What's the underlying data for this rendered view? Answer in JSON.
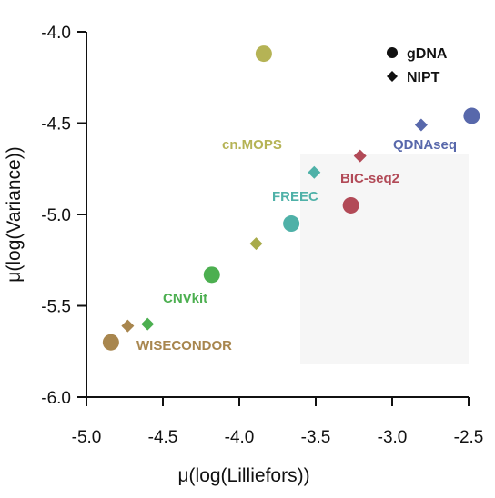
{
  "chart_data": {
    "type": "scatter",
    "xlabel": "μ(log(Lilliefors))",
    "ylabel": "μ(log(Variance))",
    "xlim": [
      -5.0,
      -2.5
    ],
    "ylim": [
      -6.0,
      -4.0
    ],
    "xticks": [
      "-5.0",
      "-4.5",
      "-4.0",
      "-3.5",
      "-3.0",
      "-2.5"
    ],
    "yticks": [
      "-4.0",
      "-4.5",
      "-5.0",
      "-5.5",
      "-6.0"
    ],
    "legend": {
      "position": "top-right",
      "entries": [
        {
          "label": "gDNA",
          "marker": "circle"
        },
        {
          "label": "NIPT",
          "marker": "diamond"
        }
      ]
    },
    "tools": [
      {
        "name": "cn.MOPS",
        "color": "#b5b355",
        "gDNA": {
          "x": -3.84,
          "y": -4.12
        }
      },
      {
        "name": "QDNAseq",
        "color": "#5868ab",
        "gDNA": {
          "x": -2.48,
          "y": -4.46
        },
        "NIPT": {
          "x": -2.81,
          "y": -4.51
        }
      },
      {
        "name": "BIC-seq2",
        "color": "#b24a57",
        "gDNA": {
          "x": -3.27,
          "y": -4.95
        },
        "NIPT": {
          "x": -3.21,
          "y": -4.68
        }
      },
      {
        "name": "FREEC",
        "color": "#4fb1a8",
        "gDNA": {
          "x": -3.66,
          "y": -5.05
        },
        "NIPT": {
          "x": -3.51,
          "y": -4.77
        }
      },
      {
        "name": "",
        "color": "#a8ab4a",
        "NIPT": {
          "x": -3.89,
          "y": -5.16
        }
      },
      {
        "name": "CNVkit",
        "color": "#4caf50",
        "gDNA": {
          "x": -4.18,
          "y": -5.33
        },
        "NIPT": {
          "x": -4.6,
          "y": -5.6
        }
      },
      {
        "name": "WISECONDOR",
        "color": "#a8864e",
        "gDNA": {
          "x": -4.84,
          "y": -5.7
        },
        "NIPT": {
          "x": -4.73,
          "y": -5.61
        }
      }
    ]
  }
}
